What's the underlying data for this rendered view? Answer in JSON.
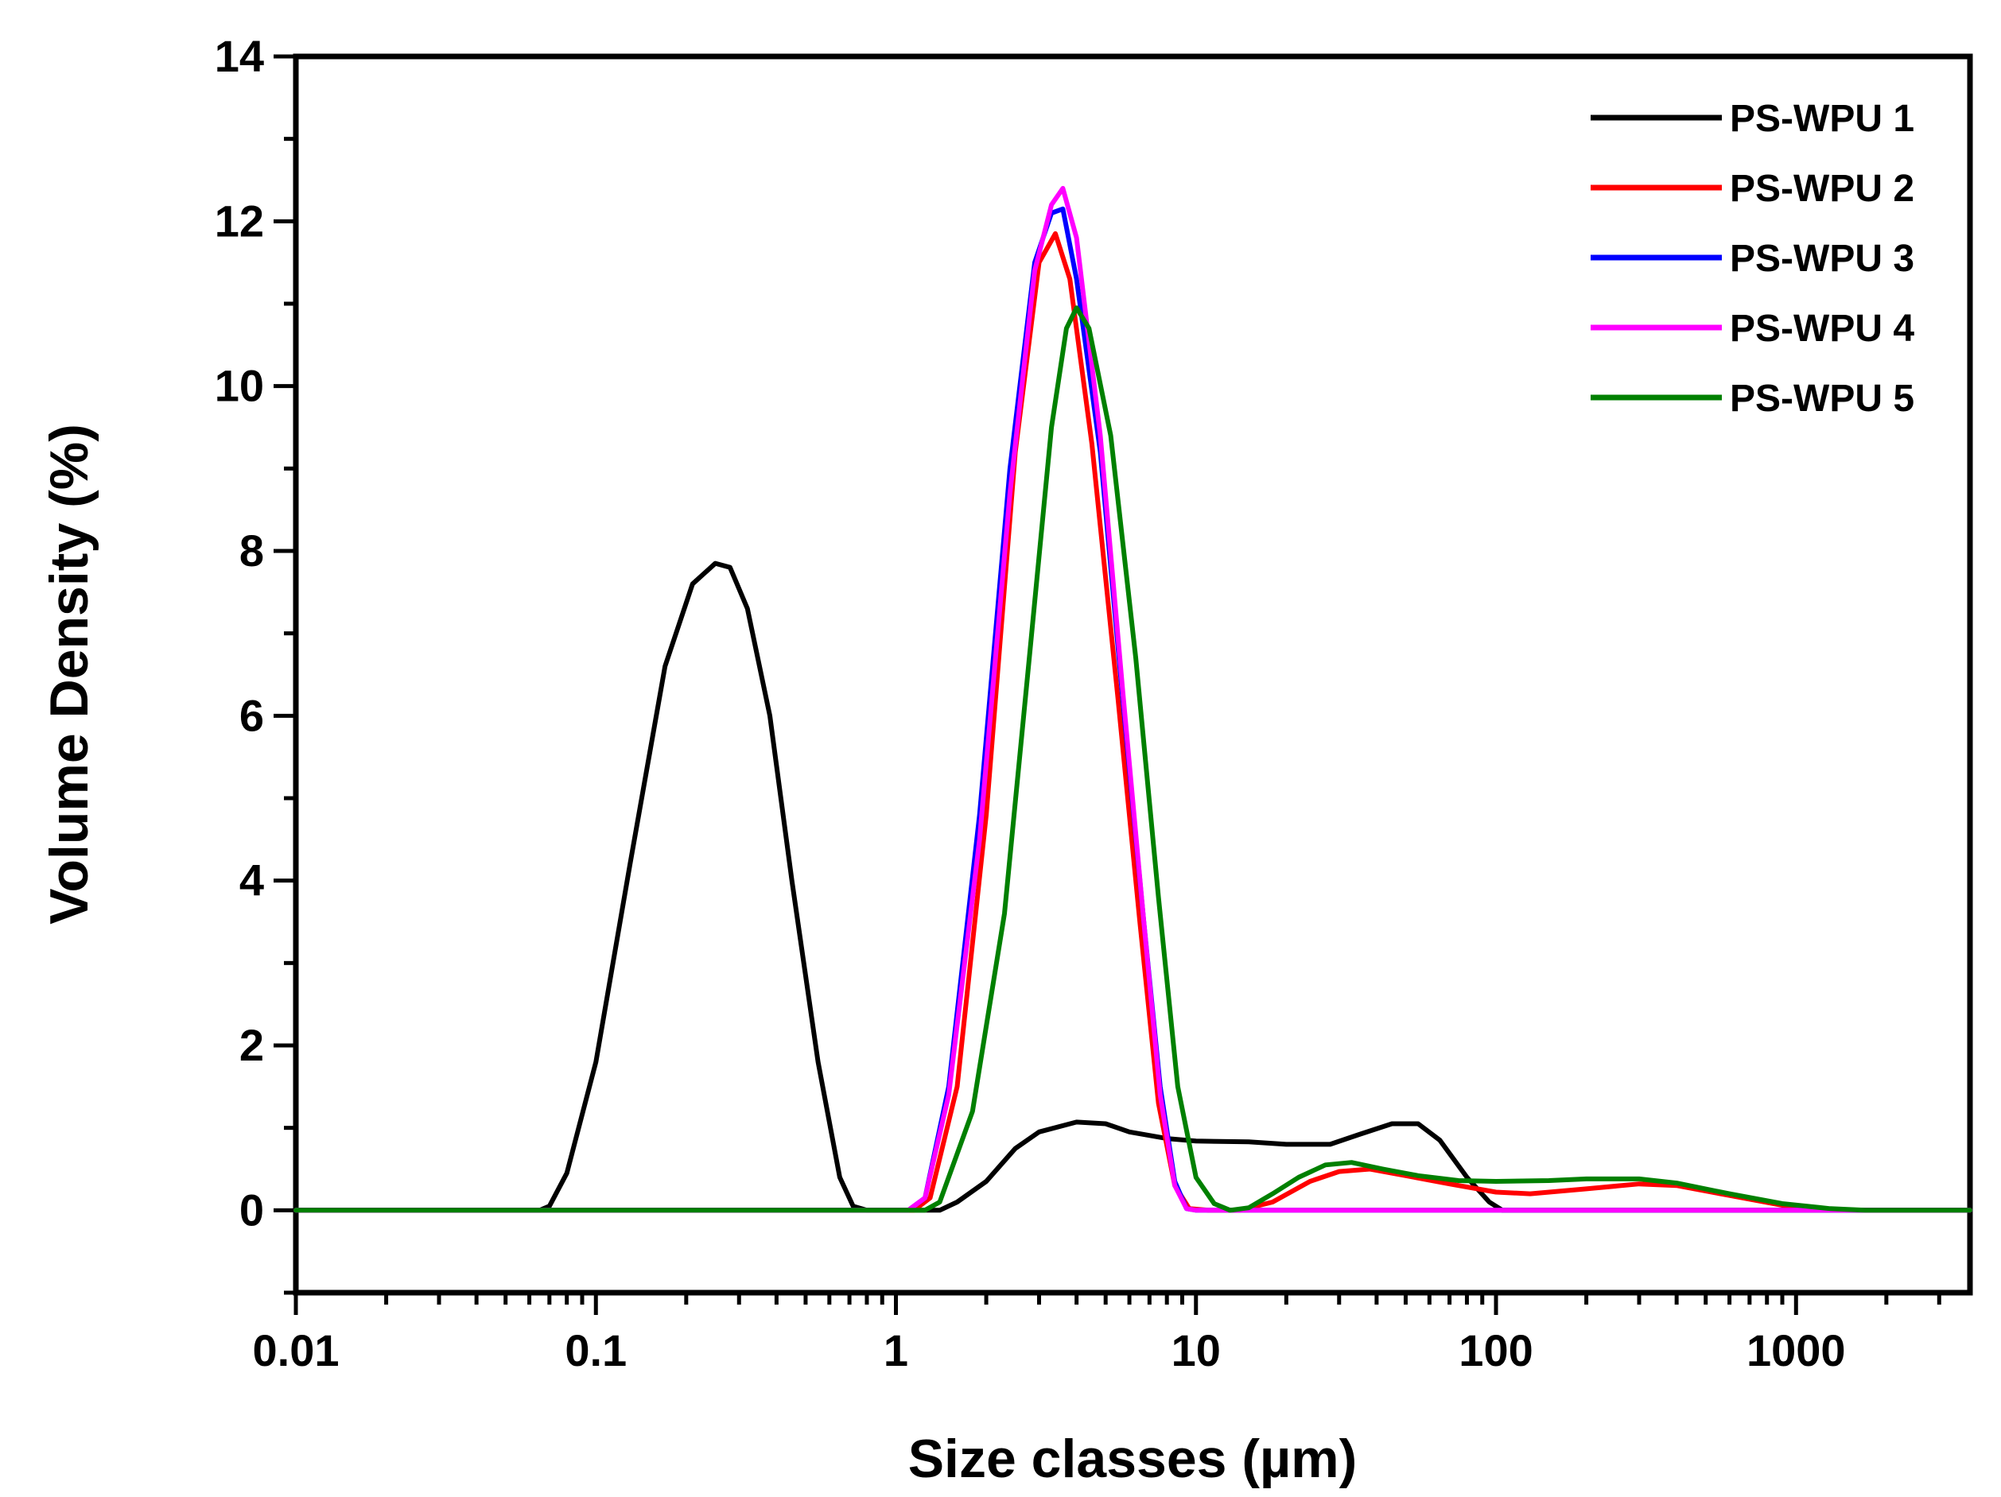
{
  "chart_data": {
    "type": "line",
    "title": "",
    "xlabel": "Size classes (µm)",
    "ylabel": "Volume Density (%)",
    "xscale": "log",
    "xlim": [
      0.01,
      3800
    ],
    "ylim": [
      -1,
      14
    ],
    "xticks": [
      {
        "value": 0.01,
        "label": "0.01"
      },
      {
        "value": 0.1,
        "label": "0.1"
      },
      {
        "value": 1,
        "label": "1"
      },
      {
        "value": 10,
        "label": "10"
      },
      {
        "value": 100,
        "label": "100"
      },
      {
        "value": 1000,
        "label": "1000"
      }
    ],
    "yticks": [
      {
        "value": 0,
        "label": "0"
      },
      {
        "value": 2,
        "label": "2"
      },
      {
        "value": 4,
        "label": "4"
      },
      {
        "value": 6,
        "label": "6"
      },
      {
        "value": 8,
        "label": "8"
      },
      {
        "value": 10,
        "label": "10"
      },
      {
        "value": 12,
        "label": "12"
      },
      {
        "value": 14,
        "label": "14"
      }
    ],
    "legend_position": "top-right",
    "series": [
      {
        "name": "PS-WPU 1",
        "color": "#000000",
        "points": [
          [
            0.01,
            0
          ],
          [
            0.065,
            0
          ],
          [
            0.07,
            0.05
          ],
          [
            0.08,
            0.45
          ],
          [
            0.1,
            1.8
          ],
          [
            0.13,
            4.2
          ],
          [
            0.17,
            6.6
          ],
          [
            0.21,
            7.6
          ],
          [
            0.25,
            7.85
          ],
          [
            0.28,
            7.8
          ],
          [
            0.32,
            7.3
          ],
          [
            0.38,
            6.0
          ],
          [
            0.45,
            4.0
          ],
          [
            0.55,
            1.8
          ],
          [
            0.65,
            0.4
          ],
          [
            0.72,
            0.05
          ],
          [
            0.8,
            0
          ],
          [
            1.4,
            0
          ],
          [
            1.6,
            0.1
          ],
          [
            2,
            0.35
          ],
          [
            2.5,
            0.75
          ],
          [
            3,
            0.95
          ],
          [
            4,
            1.07
          ],
          [
            5,
            1.05
          ],
          [
            6,
            0.95
          ],
          [
            8,
            0.87
          ],
          [
            10,
            0.84
          ],
          [
            15,
            0.83
          ],
          [
            20,
            0.8
          ],
          [
            28,
            0.8
          ],
          [
            35,
            0.92
          ],
          [
            45,
            1.05
          ],
          [
            55,
            1.05
          ],
          [
            65,
            0.85
          ],
          [
            80,
            0.4
          ],
          [
            95,
            0.1
          ],
          [
            105,
            0
          ],
          [
            3800,
            0
          ]
        ]
      },
      {
        "name": "PS-WPU 2",
        "color": "#ff0000",
        "points": [
          [
            0.01,
            0
          ],
          [
            1.15,
            0
          ],
          [
            1.3,
            0.15
          ],
          [
            1.6,
            1.5
          ],
          [
            2,
            4.8
          ],
          [
            2.5,
            9.2
          ],
          [
            3.0,
            11.5
          ],
          [
            3.4,
            11.85
          ],
          [
            3.8,
            11.3
          ],
          [
            4.5,
            9.3
          ],
          [
            5.5,
            6.2
          ],
          [
            6.5,
            3.5
          ],
          [
            7.5,
            1.3
          ],
          [
            8.5,
            0.3
          ],
          [
            9.5,
            0.02
          ],
          [
            11,
            0
          ],
          [
            14,
            0
          ],
          [
            18,
            0.1
          ],
          [
            24,
            0.35
          ],
          [
            30,
            0.47
          ],
          [
            38,
            0.5
          ],
          [
            50,
            0.42
          ],
          [
            70,
            0.32
          ],
          [
            100,
            0.22
          ],
          [
            130,
            0.2
          ],
          [
            200,
            0.26
          ],
          [
            300,
            0.32
          ],
          [
            400,
            0.3
          ],
          [
            600,
            0.18
          ],
          [
            900,
            0.06
          ],
          [
            1300,
            0.01
          ],
          [
            1700,
            0
          ],
          [
            3800,
            0
          ]
        ]
      },
      {
        "name": "PS-WPU 3",
        "color": "#0000ff",
        "points": [
          [
            0.01,
            0
          ],
          [
            1.1,
            0
          ],
          [
            1.25,
            0.15
          ],
          [
            1.5,
            1.5
          ],
          [
            1.9,
            4.8
          ],
          [
            2.4,
            9.0
          ],
          [
            2.9,
            11.5
          ],
          [
            3.3,
            12.1
          ],
          [
            3.6,
            12.15
          ],
          [
            4.0,
            11.3
          ],
          [
            4.8,
            9.2
          ],
          [
            5.7,
            6.2
          ],
          [
            6.7,
            3.5
          ],
          [
            7.6,
            1.5
          ],
          [
            8.5,
            0.35
          ],
          [
            9.3,
            0.02
          ],
          [
            10,
            0
          ],
          [
            3800,
            0
          ]
        ]
      },
      {
        "name": "PS-WPU 4",
        "color": "#ff00ff",
        "points": [
          [
            0.01,
            0
          ],
          [
            1.1,
            0
          ],
          [
            1.25,
            0.15
          ],
          [
            1.5,
            1.4
          ],
          [
            1.9,
            4.5
          ],
          [
            2.4,
            8.7
          ],
          [
            2.9,
            11.4
          ],
          [
            3.3,
            12.2
          ],
          [
            3.6,
            12.4
          ],
          [
            4.0,
            11.8
          ],
          [
            4.8,
            9.4
          ],
          [
            5.7,
            6.3
          ],
          [
            6.7,
            3.5
          ],
          [
            7.6,
            1.4
          ],
          [
            8.5,
            0.3
          ],
          [
            9.3,
            0.02
          ],
          [
            10,
            0
          ],
          [
            3800,
            0
          ]
        ]
      },
      {
        "name": "PS-WPU 5",
        "color": "#008000",
        "points": [
          [
            0.01,
            0
          ],
          [
            1.25,
            0
          ],
          [
            1.4,
            0.1
          ],
          [
            1.8,
            1.2
          ],
          [
            2.3,
            3.6
          ],
          [
            2.8,
            6.8
          ],
          [
            3.3,
            9.5
          ],
          [
            3.7,
            10.7
          ],
          [
            4.0,
            10.95
          ],
          [
            4.4,
            10.7
          ],
          [
            5.2,
            9.4
          ],
          [
            6.3,
            6.7
          ],
          [
            7.5,
            3.8
          ],
          [
            8.7,
            1.5
          ],
          [
            10,
            0.4
          ],
          [
            11.5,
            0.08
          ],
          [
            13,
            0
          ],
          [
            15,
            0.03
          ],
          [
            18,
            0.2
          ],
          [
            22,
            0.4
          ],
          [
            27,
            0.55
          ],
          [
            33,
            0.58
          ],
          [
            42,
            0.5
          ],
          [
            55,
            0.42
          ],
          [
            75,
            0.36
          ],
          [
            100,
            0.35
          ],
          [
            150,
            0.36
          ],
          [
            200,
            0.38
          ],
          [
            300,
            0.38
          ],
          [
            400,
            0.33
          ],
          [
            600,
            0.2
          ],
          [
            900,
            0.08
          ],
          [
            1300,
            0.02
          ],
          [
            1700,
            0
          ],
          [
            3800,
            0
          ]
        ]
      }
    ]
  }
}
